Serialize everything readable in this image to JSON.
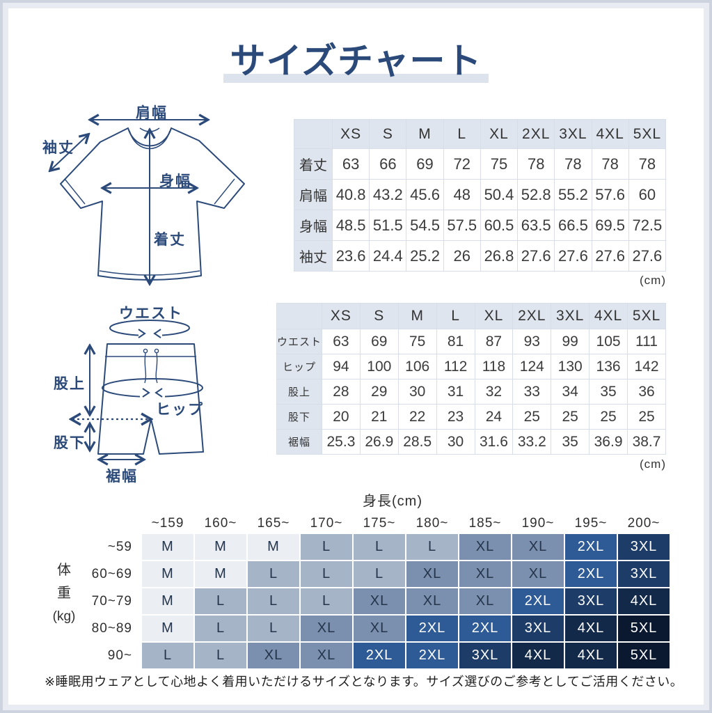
{
  "page": {
    "title": "サイズチャート",
    "unit_note": "(cm)",
    "footnote": "※睡眠用ウェアとして心地よく着用いただけるサイズとなります。サイズ選びのご参考としてご活用ください。"
  },
  "colors": {
    "accent_navy": "#2b4a7a",
    "title_underline": "#dde3ec",
    "table_header_bg": "#dfe5ee",
    "table_border": "#d8dee8",
    "frame_outer": "#cdd3df",
    "frame_inner": "#e8ebf1"
  },
  "shirt_diagram": {
    "labels": {
      "shoulder_width": "肩幅",
      "sleeve_length": "袖丈",
      "body_width": "身幅",
      "body_length": "着丈"
    }
  },
  "shorts_diagram": {
    "labels": {
      "waist": "ウエスト",
      "rise": "股上",
      "hip": "ヒップ",
      "inseam": "股下",
      "hem_width": "裾幅"
    }
  },
  "chart_data": [
    {
      "id": "tops_measurements",
      "type": "table",
      "columns": [
        "XS",
        "S",
        "M",
        "L",
        "XL",
        "2XL",
        "3XL",
        "4XL",
        "5XL"
      ],
      "rows": [
        {
          "label": "着丈",
          "values": [
            "63",
            "66",
            "69",
            "72",
            "75",
            "78",
            "78",
            "78",
            "78"
          ]
        },
        {
          "label": "肩幅",
          "values": [
            "40.8",
            "43.2",
            "45.6",
            "48",
            "50.4",
            "52.8",
            "55.2",
            "57.6",
            "60"
          ]
        },
        {
          "label": "身幅",
          "values": [
            "48.5",
            "51.5",
            "54.5",
            "57.5",
            "60.5",
            "63.5",
            "66.5",
            "69.5",
            "72.5"
          ]
        },
        {
          "label": "袖丈",
          "values": [
            "23.6",
            "24.4",
            "25.2",
            "26",
            "26.8",
            "27.6",
            "27.6",
            "27.6",
            "27.6"
          ]
        }
      ],
      "unit": "cm"
    },
    {
      "id": "bottoms_measurements",
      "type": "table",
      "columns": [
        "XS",
        "S",
        "M",
        "L",
        "XL",
        "2XL",
        "3XL",
        "4XL",
        "5XL"
      ],
      "rows": [
        {
          "label": "ウエスト",
          "values": [
            "63",
            "69",
            "75",
            "81",
            "87",
            "93",
            "99",
            "105",
            "111"
          ]
        },
        {
          "label": "ヒップ",
          "values": [
            "94",
            "100",
            "106",
            "112",
            "118",
            "124",
            "130",
            "136",
            "142"
          ]
        },
        {
          "label": "股上",
          "values": [
            "28",
            "29",
            "30",
            "31",
            "32",
            "33",
            "34",
            "35",
            "36"
          ]
        },
        {
          "label": "股下",
          "values": [
            "20",
            "21",
            "22",
            "23",
            "24",
            "25",
            "25",
            "25",
            "25"
          ]
        },
        {
          "label": "裾幅",
          "values": [
            "25.3",
            "26.9",
            "28.5",
            "30",
            "31.6",
            "33.2",
            "35",
            "36.9",
            "38.7"
          ]
        }
      ],
      "unit": "cm"
    },
    {
      "id": "size_by_height_weight",
      "type": "heatmap",
      "x_axis_label": "身長(cm)",
      "y_axis_label": "体重(kg)",
      "y_axis_label_lines": [
        "体",
        "重",
        "(kg)"
      ],
      "columns": [
        "~159",
        "160~",
        "165~",
        "170~",
        "175~",
        "180~",
        "185~",
        "190~",
        "195~",
        "200~"
      ],
      "rows": [
        {
          "label": "~59",
          "values": [
            "M",
            "M",
            "M",
            "L",
            "L",
            "L",
            "XL",
            "XL",
            "2XL",
            "3XL"
          ]
        },
        {
          "label": "60~69",
          "values": [
            "M",
            "M",
            "L",
            "L",
            "L",
            "XL",
            "XL",
            "XL",
            "2XL",
            "3XL"
          ]
        },
        {
          "label": "70~79",
          "values": [
            "M",
            "L",
            "L",
            "L",
            "XL",
            "XL",
            "XL",
            "2XL",
            "3XL",
            "4XL"
          ]
        },
        {
          "label": "80~89",
          "values": [
            "M",
            "L",
            "L",
            "XL",
            "XL",
            "2XL",
            "2XL",
            "3XL",
            "4XL",
            "5XL"
          ]
        },
        {
          "label": "90~",
          "values": [
            "L",
            "L",
            "XL",
            "XL",
            "2XL",
            "2XL",
            "3XL",
            "4XL",
            "4XL",
            "5XL"
          ]
        }
      ],
      "palette": {
        "M": "#ebeef3",
        "L": "#a6b4c8",
        "XL": "#7b90ae",
        "2XL": "#2e5b95",
        "3XL": "#1d3c67",
        "4XL": "#13294a",
        "5XL": "#0a1930"
      },
      "dark_text_color": "#24344a",
      "light_text_color": "#ffffff",
      "light_text_sizes": [
        "2XL",
        "3XL",
        "4XL",
        "5XL"
      ]
    }
  ]
}
